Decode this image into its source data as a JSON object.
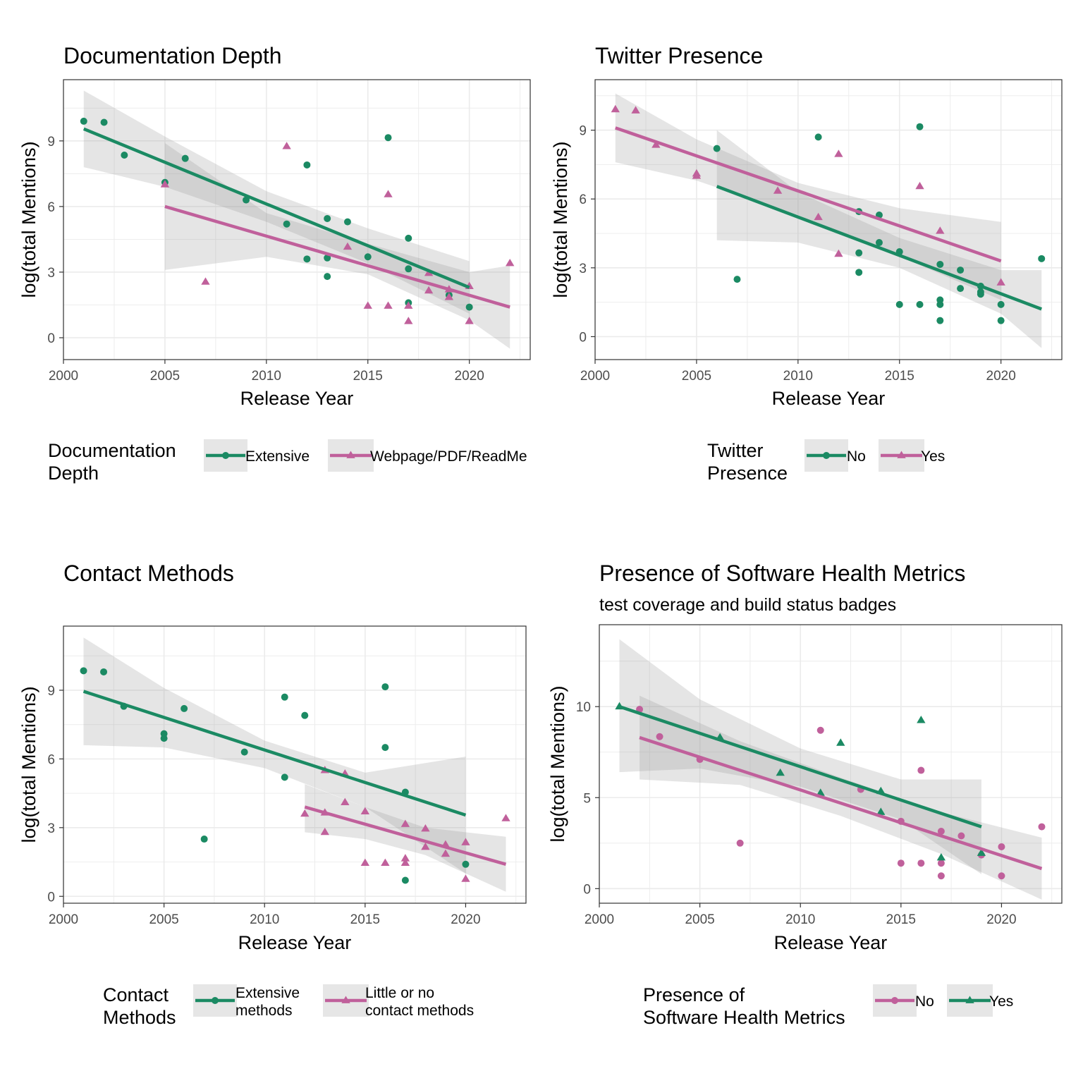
{
  "colors": {
    "green": "#1b8a63",
    "pink": "#c0609b",
    "ribbon": "#999999"
  },
  "chart_data": [
    {
      "type": "scatter",
      "title": "Documentation Depth",
      "subtitle": "",
      "xlabel": "Release Year",
      "ylabel": "log(total Mentions)",
      "xlim": [
        2000,
        2023
      ],
      "ylim": [
        -1,
        11.8
      ],
      "xticks": [
        2000,
        2005,
        2010,
        2015,
        2020
      ],
      "yticks": [
        0,
        3,
        6,
        9
      ],
      "grid": true,
      "legend_position": "bottom",
      "legend_title": [
        "Documentation",
        "Depth"
      ],
      "series": [
        {
          "name": [
            "Extensive"
          ],
          "color": "green",
          "shape": "circle",
          "points": [
            [
              2001,
              9.9
            ],
            [
              2002,
              9.85
            ],
            [
              2003,
              8.35
            ],
            [
              2005,
              7.1
            ],
            [
              2006,
              8.2
            ],
            [
              2009,
              6.3
            ],
            [
              2011,
              5.2
            ],
            [
              2012,
              7.9
            ],
            [
              2012,
              3.6
            ],
            [
              2013,
              5.45
            ],
            [
              2013,
              3.65
            ],
            [
              2013,
              2.8
            ],
            [
              2014,
              5.3
            ],
            [
              2015,
              3.7
            ],
            [
              2016,
              9.15
            ],
            [
              2017,
              4.55
            ],
            [
              2017,
              3.15
            ],
            [
              2017,
              1.6
            ],
            [
              2019,
              1.95
            ],
            [
              2020,
              1.4
            ]
          ],
          "fit": {
            "x": [
              2001,
              2020
            ],
            "y": [
              9.55,
              2.3
            ]
          },
          "band": {
            "x": [
              2001,
              2005,
              2010,
              2015,
              2020
            ],
            "lower": [
              7.8,
              6.9,
              5.3,
              3.4,
              1.1
            ],
            "upper": [
              11.3,
              9.2,
              6.7,
              5.0,
              3.5
            ]
          }
        },
        {
          "name": [
            "Webpage/PDF/ReadMe"
          ],
          "color": "pink",
          "shape": "triangle",
          "points": [
            [
              2005,
              7.0
            ],
            [
              2007,
              2.55
            ],
            [
              2011,
              8.75
            ],
            [
              2014,
              4.15
            ],
            [
              2015,
              1.45
            ],
            [
              2016,
              6.55
            ],
            [
              2016,
              1.45
            ],
            [
              2017,
              1.45
            ],
            [
              2017,
              0.75
            ],
            [
              2018,
              2.95
            ],
            [
              2018,
              2.15
            ],
            [
              2019,
              2.2
            ],
            [
              2019,
              1.85
            ],
            [
              2020,
              2.35
            ],
            [
              2020,
              0.75
            ],
            [
              2022,
              3.4
            ]
          ],
          "fit": {
            "x": [
              2005,
              2022
            ],
            "y": [
              6.0,
              1.4
            ]
          },
          "band": {
            "x": [
              2005,
              2010,
              2015,
              2020,
              2022
            ],
            "lower": [
              3.1,
              3.7,
              2.9,
              0.8,
              -0.5
            ],
            "upper": [
              8.9,
              5.7,
              4.3,
              3.0,
              3.3
            ]
          }
        }
      ]
    },
    {
      "type": "scatter",
      "title": "Twitter Presence",
      "subtitle": "",
      "xlabel": "Release Year",
      "ylabel": "log(total Mentions)",
      "xlim": [
        2000,
        2023
      ],
      "ylim": [
        -1,
        11.2
      ],
      "xticks": [
        2000,
        2005,
        2010,
        2015,
        2020
      ],
      "yticks": [
        0,
        3,
        6,
        9
      ],
      "grid": true,
      "legend_position": "bottom",
      "legend_title": [
        "Twitter",
        "Presence"
      ],
      "series": [
        {
          "name": [
            "No"
          ],
          "color": "green",
          "shape": "circle",
          "points": [
            [
              2006,
              8.2
            ],
            [
              2007,
              2.5
            ],
            [
              2011,
              8.7
            ],
            [
              2013,
              5.45
            ],
            [
              2013,
              3.65
            ],
            [
              2013,
              2.8
            ],
            [
              2014,
              5.3
            ],
            [
              2014,
              4.1
            ],
            [
              2015,
              3.7
            ],
            [
              2015,
              1.4
            ],
            [
              2016,
              9.15
            ],
            [
              2016,
              1.4
            ],
            [
              2017,
              3.15
            ],
            [
              2017,
              1.6
            ],
            [
              2017,
              1.4
            ],
            [
              2017,
              0.7
            ],
            [
              2018,
              2.9
            ],
            [
              2018,
              2.1
            ],
            [
              2019,
              2.2
            ],
            [
              2019,
              1.95
            ],
            [
              2019,
              1.85
            ],
            [
              2020,
              1.4
            ],
            [
              2020,
              0.7
            ],
            [
              2022,
              3.4
            ]
          ],
          "fit": {
            "x": [
              2006,
              2022
            ],
            "y": [
              6.55,
              1.2
            ]
          },
          "band": {
            "x": [
              2006,
              2010,
              2015,
              2020,
              2022
            ],
            "lower": [
              4.2,
              4.1,
              3.0,
              1.0,
              -0.5
            ],
            "upper": [
              9.0,
              6.3,
              4.3,
              2.9,
              2.9
            ]
          }
        },
        {
          "name": [
            "Yes"
          ],
          "color": "pink",
          "shape": "triangle",
          "points": [
            [
              2001,
              9.9
            ],
            [
              2002,
              9.85
            ],
            [
              2003,
              8.35
            ],
            [
              2005,
              7.1
            ],
            [
              2005,
              7.0
            ],
            [
              2009,
              6.35
            ],
            [
              2011,
              5.2
            ],
            [
              2012,
              7.95
            ],
            [
              2012,
              3.6
            ],
            [
              2016,
              6.55
            ],
            [
              2017,
              4.6
            ],
            [
              2020,
              2.35
            ]
          ],
          "fit": {
            "x": [
              2001,
              2020
            ],
            "y": [
              9.1,
              3.3
            ]
          },
          "band": {
            "x": [
              2001,
              2005,
              2010,
              2015,
              2020
            ],
            "lower": [
              7.6,
              6.8,
              5.3,
              3.5,
              1.6
            ],
            "upper": [
              10.6,
              8.6,
              6.7,
              5.6,
              5.0
            ]
          }
        }
      ]
    },
    {
      "type": "scatter",
      "title": "Contact Methods",
      "subtitle": "",
      "xlabel": "Release Year",
      "ylabel": "log(total Mentions)",
      "xlim": [
        2000,
        2023
      ],
      "ylim": [
        -0.3,
        11.8
      ],
      "xticks": [
        2000,
        2005,
        2010,
        2015,
        2020
      ],
      "yticks": [
        0,
        3,
        6,
        9
      ],
      "grid": true,
      "legend_position": "bottom",
      "legend_title": [
        "Contact",
        "Methods"
      ],
      "series": [
        {
          "name": [
            "Extensive",
            "methods"
          ],
          "color": "green",
          "shape": "circle",
          "points": [
            [
              2001,
              9.85
            ],
            [
              2002,
              9.8
            ],
            [
              2003,
              8.3
            ],
            [
              2005,
              7.1
            ],
            [
              2005,
              6.9
            ],
            [
              2006,
              8.2
            ],
            [
              2007,
              2.5
            ],
            [
              2009,
              6.3
            ],
            [
              2011,
              8.7
            ],
            [
              2011,
              5.2
            ],
            [
              2012,
              7.9
            ],
            [
              2016,
              9.15
            ],
            [
              2016,
              6.5
            ],
            [
              2017,
              4.55
            ],
            [
              2017,
              0.7
            ],
            [
              2020,
              1.4
            ]
          ],
          "fit": {
            "x": [
              2001,
              2020
            ],
            "y": [
              8.95,
              3.55
            ]
          },
          "band": {
            "x": [
              2001,
              2005,
              2010,
              2015,
              2020
            ],
            "lower": [
              6.6,
              6.5,
              5.6,
              3.9,
              1.0
            ],
            "upper": [
              11.3,
              9.1,
              6.8,
              5.4,
              6.1
            ]
          }
        },
        {
          "name": [
            "Little or no",
            "contact methods"
          ],
          "color": "pink",
          "shape": "triangle",
          "points": [
            [
              2012,
              3.6
            ],
            [
              2013,
              5.5
            ],
            [
              2013,
              3.65
            ],
            [
              2013,
              2.8
            ],
            [
              2014,
              5.35
            ],
            [
              2014,
              4.1
            ],
            [
              2015,
              3.7
            ],
            [
              2015,
              1.45
            ],
            [
              2016,
              1.45
            ],
            [
              2017,
              3.15
            ],
            [
              2017,
              1.65
            ],
            [
              2017,
              1.45
            ],
            [
              2018,
              2.95
            ],
            [
              2018,
              2.15
            ],
            [
              2019,
              2.25
            ],
            [
              2019,
              1.85
            ],
            [
              2020,
              2.35
            ],
            [
              2020,
              0.75
            ],
            [
              2022,
              3.4
            ]
          ],
          "fit": {
            "x": [
              2012,
              2022
            ],
            "y": [
              3.9,
              1.4
            ]
          },
          "band": {
            "x": [
              2012,
              2015,
              2018,
              2020,
              2022
            ],
            "lower": [
              2.8,
              2.5,
              1.8,
              1.0,
              0.2
            ],
            "upper": [
              4.9,
              3.9,
              3.0,
              2.8,
              2.6
            ]
          }
        }
      ]
    },
    {
      "type": "scatter",
      "title": "Presence of Software Health Metrics",
      "subtitle": "test coverage and build status badges",
      "xlabel": "Release Year",
      "ylabel": "log(total Mentions)",
      "xlim": [
        2000,
        2023
      ],
      "ylim": [
        -0.8,
        14.5
      ],
      "xticks": [
        2000,
        2005,
        2010,
        2015,
        2020
      ],
      "yticks": [
        0,
        5,
        10
      ],
      "grid": true,
      "legend_position": "bottom",
      "legend_title": [
        "Presence of",
        "Software Health Metrics"
      ],
      "series": [
        {
          "name": [
            "No"
          ],
          "color": "pink",
          "shape": "circle",
          "points": [
            [
              2002,
              9.85
            ],
            [
              2003,
              8.35
            ],
            [
              2005,
              7.1
            ],
            [
              2007,
              2.5
            ],
            [
              2011,
              8.7
            ],
            [
              2013,
              5.45
            ],
            [
              2015,
              3.7
            ],
            [
              2015,
              1.4
            ],
            [
              2016,
              6.5
            ],
            [
              2016,
              1.4
            ],
            [
              2017,
              3.15
            ],
            [
              2017,
              1.4
            ],
            [
              2017,
              0.7
            ],
            [
              2018,
              2.9
            ],
            [
              2019,
              1.85
            ],
            [
              2020,
              2.3
            ],
            [
              2020,
              0.7
            ],
            [
              2022,
              3.4
            ]
          ],
          "fit": {
            "x": [
              2002,
              2022
            ],
            "y": [
              8.3,
              1.1
            ]
          },
          "band": {
            "x": [
              2002,
              2007,
              2012,
              2017,
              2022
            ],
            "lower": [
              6.0,
              5.7,
              4.0,
              1.9,
              -0.6
            ],
            "upper": [
              10.6,
              8.1,
              6.1,
              4.2,
              2.8
            ]
          }
        },
        {
          "name": [
            "Yes"
          ],
          "color": "green",
          "shape": "triangle",
          "points": [
            [
              2001,
              10.0
            ],
            [
              2006,
              8.3
            ],
            [
              2009,
              6.35
            ],
            [
              2011,
              5.25
            ],
            [
              2012,
              8.0
            ],
            [
              2014,
              5.35
            ],
            [
              2014,
              4.2
            ],
            [
              2016,
              9.25
            ],
            [
              2017,
              1.7
            ],
            [
              2019,
              1.95
            ]
          ],
          "fit": {
            "x": [
              2001,
              2019
            ],
            "y": [
              10.0,
              3.4
            ]
          },
          "band": {
            "x": [
              2001,
              2005,
              2010,
              2015,
              2019
            ],
            "lower": [
              6.4,
              6.6,
              5.6,
              3.8,
              0.8
            ],
            "upper": [
              13.7,
              10.4,
              7.7,
              6.0,
              6.0
            ]
          }
        }
      ]
    }
  ]
}
